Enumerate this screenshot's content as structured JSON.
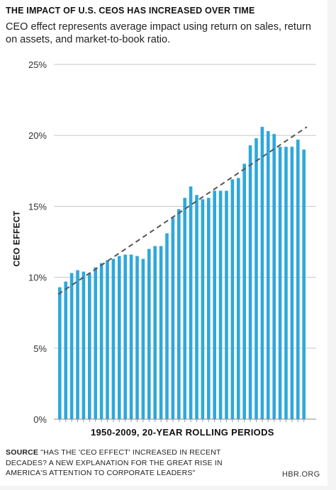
{
  "chart_data": {
    "type": "bar",
    "title": "THE IMPACT OF U.S. CEOS HAS INCREASED OVER TIME",
    "subtitle": "CEO effect represents average impact using return on sales, return on assets, and market-to-book ratio.",
    "xlabel": "1950-2009, 20-YEAR ROLLING PERIODS",
    "ylabel": "CEO EFFECT",
    "ylim": [
      0,
      25
    ],
    "yticks": [
      0,
      5,
      10,
      15,
      20,
      25
    ],
    "ytick_labels": [
      "0%",
      "5%",
      "10%",
      "15%",
      "20%",
      "25%"
    ],
    "grid": true,
    "bar_color": "#2ea8dc",
    "trendline": {
      "style": "dashed",
      "color": "#555555",
      "start": 8.8,
      "end": 20.6
    },
    "values": [
      9.3,
      9.7,
      10.3,
      10.5,
      10.4,
      10.3,
      10.7,
      11.0,
      11.2,
      11.3,
      11.5,
      11.6,
      11.6,
      11.5,
      11.3,
      12.0,
      12.2,
      12.2,
      13.1,
      14.2,
      14.8,
      15.6,
      16.4,
      15.8,
      15.5,
      15.6,
      16.1,
      16.1,
      16.1,
      16.9,
      17.0,
      18.0,
      19.3,
      19.8,
      20.6,
      20.3,
      20.1,
      19.2,
      19.2,
      19.2,
      19.7,
      19.0
    ]
  },
  "footer": {
    "source_label": "SOURCE",
    "source_text": " \"HAS THE 'CEO EFFECT' INCREASED IN RECENT DECADES? A NEW EXPLANATION FOR THE GREAT RISE IN AMERICA'S ATTENTION TO CORPORATE LEADERS\"",
    "credit": "HBR.ORG"
  }
}
